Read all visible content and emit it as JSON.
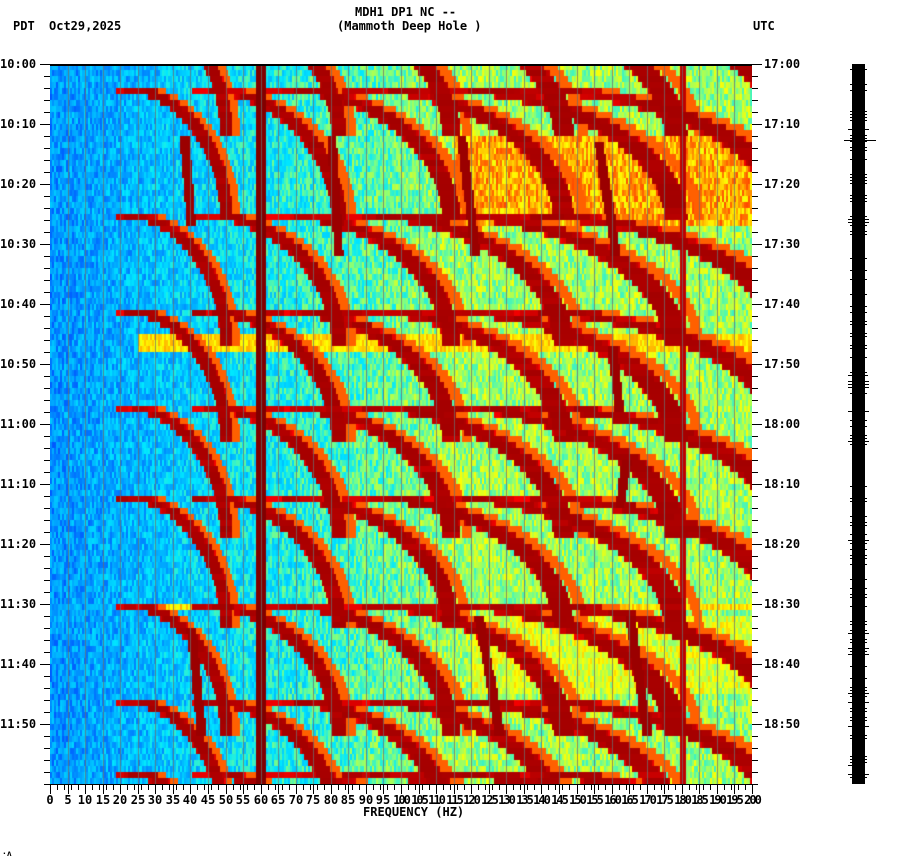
{
  "header": {
    "station_title": "MDH1 DP1 NC --",
    "station_name": "(Mammoth Deep Hole )",
    "left_timezone": "PDT",
    "date": "Oct29,2025",
    "right_timezone": "UTC"
  },
  "footer_mark": "·ʌ",
  "chart_data": {
    "type": "heatmap",
    "title": "MDH1 DP1 NC -- (Mammoth Deep Hole )",
    "subtitle": "Oct29,2025",
    "xlabel": "FREQUENCY (HZ)",
    "ylabel_left": "PDT",
    "ylabel_right": "UTC",
    "xlim": [
      0,
      200
    ],
    "x_ticks": [
      0,
      5,
      10,
      15,
      20,
      25,
      30,
      35,
      40,
      45,
      50,
      55,
      60,
      65,
      70,
      75,
      80,
      85,
      90,
      95,
      100,
      105,
      110,
      115,
      120,
      125,
      130,
      135,
      140,
      145,
      150,
      155,
      160,
      165,
      170,
      175,
      180,
      185,
      190,
      195,
      200
    ],
    "y_ticks_left": [
      "10:00",
      "10:10",
      "10:20",
      "10:30",
      "10:40",
      "10:50",
      "11:00",
      "11:10",
      "11:20",
      "11:30",
      "11:40",
      "11:50"
    ],
    "y_ticks_right": [
      "17:00",
      "17:10",
      "17:20",
      "17:30",
      "17:40",
      "17:50",
      "18:00",
      "18:10",
      "18:20",
      "18:30",
      "18:40",
      "18:50"
    ],
    "time_range_minutes": 120,
    "colormap": [
      "#0050ff",
      "#00a0ff",
      "#00e8ff",
      "#80ff80",
      "#ffff00",
      "#ff8000",
      "#ff0000",
      "#800000"
    ],
    "persistent_lines_hz": [
      {
        "freq": 60,
        "intensity": "max",
        "width_hz": 1.6
      },
      {
        "freq": 180,
        "intensity": "strong",
        "width_hz": 0.4
      }
    ],
    "energy_bands_minutes": [
      {
        "start": 12,
        "end": 27,
        "fmin": 115,
        "fmax": 200,
        "level": "orange"
      },
      {
        "start": 45,
        "end": 48,
        "fmin": 0,
        "fmax": 200,
        "level": "yellow-line"
      },
      {
        "start": 90,
        "end": 91,
        "fmin": 20,
        "fmax": 200,
        "level": "yellow-line"
      },
      {
        "start": 92,
        "end": 105,
        "fmin": 120,
        "fmax": 200,
        "level": "yellow"
      }
    ],
    "chirp_sweeps": {
      "description": "Repeating sweeping harmonic arcs (~20 min period) rising in frequency with time",
      "periods_start_minutes": [
        -10,
        4,
        25,
        41,
        57,
        72,
        90,
        106,
        118
      ],
      "harmonics_base_hz": [
        20,
        40,
        60,
        80,
        100,
        120
      ]
    },
    "vertical_drift_tracks": [
      {
        "freq_start": 38,
        "freq_end": 40,
        "t_start": 12,
        "t_end": 27
      },
      {
        "freq_start": 80,
        "freq_end": 82,
        "t_start": 12,
        "t_end": 32
      },
      {
        "freq_start": 117,
        "freq_end": 121,
        "t_start": 12,
        "t_end": 32
      },
      {
        "freq_start": 156,
        "freq_end": 161,
        "t_start": 13,
        "t_end": 32
      },
      {
        "freq_start": 160,
        "freq_end": 162,
        "t_start": 47,
        "t_end": 58
      },
      {
        "freq_start": 164,
        "freq_end": 162,
        "t_start": 66,
        "t_end": 74
      },
      {
        "freq_start": 165,
        "freq_end": 170,
        "t_start": 92,
        "t_end": 112
      },
      {
        "freq_start": 122,
        "freq_end": 128,
        "t_start": 92,
        "t_end": 112
      },
      {
        "freq_start": 40,
        "freq_end": 43,
        "t_start": 94,
        "t_end": 112
      }
    ]
  }
}
